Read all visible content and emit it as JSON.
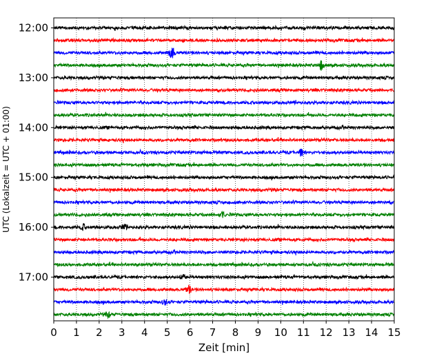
{
  "chart_data": {
    "type": "line",
    "subtype": "helicorder-seismogram",
    "xlabel": "Zeit  [min]",
    "ylabel": "UTC (Lokalzeit = UTC + 01:00)",
    "xlim": [
      0,
      15
    ],
    "x_ticks": [
      "0",
      "1",
      "2",
      "3",
      "4",
      "5",
      "6",
      "7",
      "8",
      "9",
      "10",
      "11",
      "12",
      "13",
      "14",
      "15"
    ],
    "grid": {
      "x": "dotted-vertical",
      "y": false
    },
    "y_tick_labels": [
      {
        "label": "12:00",
        "row": 0
      },
      {
        "label": "13:00",
        "row": 4
      },
      {
        "label": "14:00",
        "row": 8
      },
      {
        "label": "15:00",
        "row": 12
      },
      {
        "label": "16:00",
        "row": 16
      },
      {
        "label": "17:00",
        "row": 20
      }
    ],
    "row_interval_minutes": 15,
    "row_start_times": [
      "12:00",
      "12:15",
      "12:30",
      "12:45",
      "13:00",
      "13:15",
      "13:30",
      "13:45",
      "14:00",
      "14:15",
      "14:30",
      "14:45",
      "15:00",
      "15:15",
      "15:30",
      "15:45",
      "16:00",
      "16:15",
      "16:30",
      "16:45",
      "17:00",
      "17:15",
      "17:30",
      "17:45"
    ],
    "row_colors_cycle": [
      "#000000",
      "#ff0000",
      "#0000ff",
      "#008000"
    ],
    "noise_level": 1.0,
    "events": [
      {
        "row": 2,
        "minute": 5.2,
        "amplitude": 3.5
      },
      {
        "row": 3,
        "minute": 11.8,
        "amplitude": 2.8
      },
      {
        "row": 10,
        "minute": 10.9,
        "amplitude": 2.0
      },
      {
        "row": 15,
        "minute": 7.4,
        "amplitude": 1.8
      },
      {
        "row": 16,
        "minute": 1.3,
        "amplitude": 1.5
      },
      {
        "row": 16,
        "minute": 3.1,
        "amplitude": 1.5
      },
      {
        "row": 20,
        "minute": 5.7,
        "amplitude": 1.5
      },
      {
        "row": 21,
        "minute": 5.95,
        "amplitude": 2.0
      },
      {
        "row": 22,
        "minute": 4.9,
        "amplitude": 1.5
      },
      {
        "row": 23,
        "minute": 2.4,
        "amplitude": 1.6
      }
    ]
  }
}
